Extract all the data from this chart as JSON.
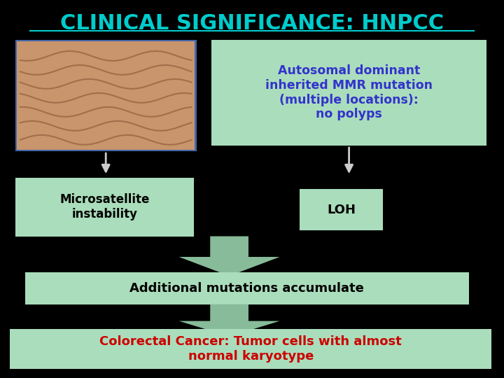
{
  "background_color": "#000000",
  "title": "CLINICAL SIGNIFICANCE: HNPCC",
  "title_color": "#00cccc",
  "title_fontsize": 22,
  "box_top_right_text": "Autosomal dominant\ninherited MMR mutation\n(multiple locations):\nno polyps",
  "box_top_right_color": "#aaddbb",
  "box_top_right_text_color": "#3333cc",
  "box_mid_left_text": "Microsatellite\ninstability",
  "box_mid_left_color": "#aaddbb",
  "box_mid_left_text_color": "#000000",
  "box_mid_right_text": "LOH",
  "box_mid_right_color": "#aaddbb",
  "box_mid_right_text_color": "#000000",
  "box_bottom_mid_text": "Additional mutations accumulate",
  "box_bottom_mid_color": "#aaddbb",
  "box_bottom_mid_text_color": "#000000",
  "box_final_text": "Colorectal Cancer: Tumor cells with almost\nnormal karyotype",
  "box_final_color": "#aaddbb",
  "box_final_text_color": "#cc0000",
  "arrow_color": "#88bb99",
  "white_arrow_color": "#cccccc",
  "img_placeholder_color": "#4466aa",
  "img_inner_color": "#c8956c"
}
